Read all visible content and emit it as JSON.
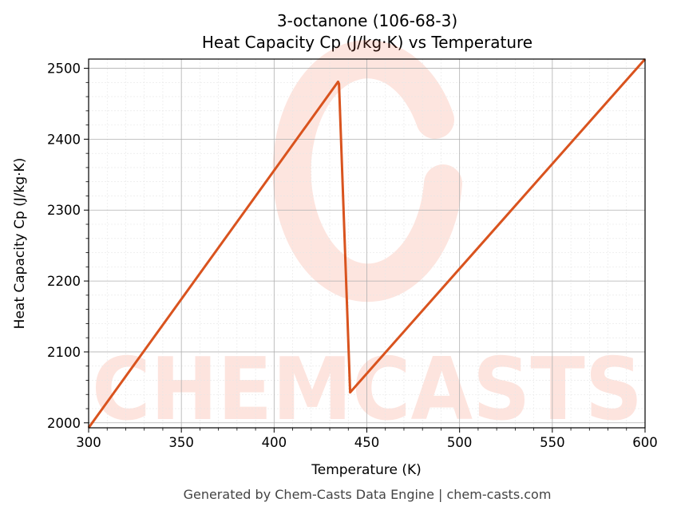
{
  "chart_data": {
    "type": "line",
    "title_line1": "3-octanone (106-68-3)",
    "title_line2": "Heat Capacity Cp (J/kg·K) vs Temperature",
    "xlabel": "Temperature (K)",
    "ylabel": "Heat Capacity Cp (J/kg·K)",
    "xlim": [
      300,
      600
    ],
    "ylim": [
      1993,
      2513
    ],
    "x_ticks": [
      300,
      350,
      400,
      450,
      500,
      550,
      600
    ],
    "y_ticks": [
      2000,
      2100,
      2200,
      2300,
      2400,
      2500
    ],
    "grid": true,
    "series": [
      {
        "color": "#d9531e",
        "points": [
          [
            300,
            1993
          ],
          [
            434.5,
            2481
          ],
          [
            435,
            2478
          ],
          [
            441,
            2043
          ],
          [
            600,
            2513
          ]
        ]
      }
    ]
  },
  "footer": "Generated by Chem-Casts Data Engine | chem-casts.com",
  "watermark": "CHEMCASTS"
}
